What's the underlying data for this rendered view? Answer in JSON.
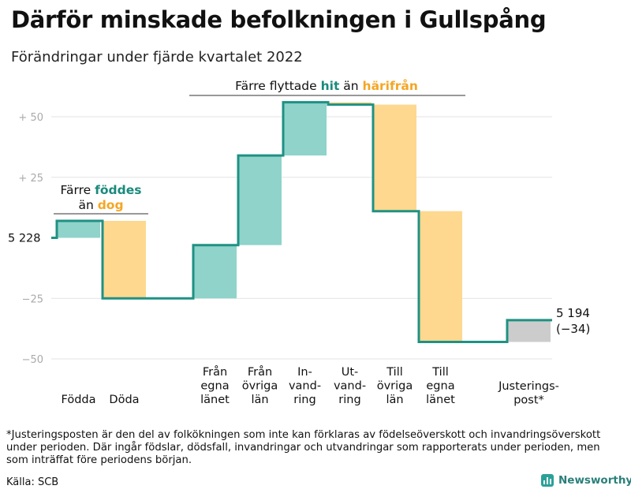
{
  "header": {
    "title": "Därför minskade befolkningen i Gullspång",
    "subtitle": "Förändringar under fjärde kvartalet 2022"
  },
  "chart_data": {
    "type": "waterfall",
    "ylim": [
      -55,
      63
    ],
    "yticks": [
      50,
      25,
      -25,
      -50
    ],
    "ytick_labels": [
      "+ 50",
      "+ 25",
      "−25",
      "−50"
    ],
    "grid": true,
    "start": {
      "value": 0,
      "label": "5 228"
    },
    "end": {
      "value": -34,
      "label": "5 194",
      "sublabel": "(−34)"
    },
    "steps": [
      {
        "category": "Födda",
        "change": 7,
        "kind": "in"
      },
      {
        "category": "Döda",
        "change": -32,
        "kind": "out"
      },
      {
        "category": "Från egna länet",
        "change": 22,
        "kind": "in"
      },
      {
        "category": "Från övriga län",
        "change": 37,
        "kind": "in"
      },
      {
        "category": "In-vandring",
        "change": 22,
        "kind": "in"
      },
      {
        "category": "Ut-vandring",
        "change": -1,
        "kind": "out"
      },
      {
        "category": "Till övriga län",
        "change": -44,
        "kind": "out"
      },
      {
        "category": "Till egna länet",
        "change": -54,
        "kind": "out"
      },
      {
        "category": "Justerings-post*",
        "change": 9,
        "kind": "adjust"
      }
    ],
    "category_lines": [
      [
        "Födda"
      ],
      [
        "Döda"
      ],
      [
        "Från",
        "egna",
        "länet"
      ],
      [
        "Från",
        "övriga",
        "län"
      ],
      [
        "In-",
        "vand-",
        "ring"
      ],
      [
        "Ut-",
        "vand-",
        "ring"
      ],
      [
        "Till",
        "övriga",
        "län"
      ],
      [
        "Till",
        "egna",
        "länet"
      ],
      [
        "Justerings-",
        "post*"
      ]
    ],
    "annotations": {
      "births": {
        "line1_pre": "Färre ",
        "line1_hl": "föddes",
        "line2_pre": "än ",
        "line2_hl": "dog"
      },
      "migration": {
        "pre": "Färre flyttade ",
        "hl1": "hit",
        "mid": " än ",
        "hl2": "härifrån"
      }
    },
    "colors": {
      "in": "#8fd3ca",
      "out": "#fdd88e",
      "adjust": "#cccccc",
      "line": "#1f9183",
      "hl_in": "#1a8a7c",
      "hl_out": "#f5a623",
      "grid": "#e3e3e3",
      "tick": "#aaaaaa"
    }
  },
  "footnote": "*Justeringsposten är den del av folkökningen som inte kan förklaras av födelseöverskott och invandringsöverskott under perioden. Där ingår födslar, dödsfall, invandringar och utvandringar som rapporterats under perioden, men som inträffat före periodens början.",
  "source": "Källa: SCB",
  "logo": {
    "name": "Newsworthy"
  }
}
